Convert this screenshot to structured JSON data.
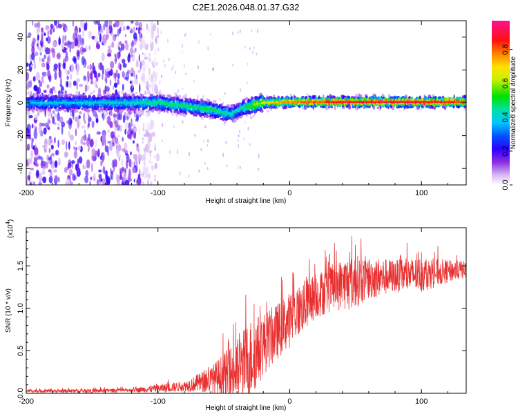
{
  "title": "C2E1.2026.048.01.37.G32",
  "colors": {
    "snr_line": "#e83030",
    "spectrogram_low": "#c9a6f0",
    "spectrogram_mid": "#4b10d0",
    "spectrogram_high": "#ff2a2a"
  },
  "colorbar": {
    "label": "Normalized spectral amplitude",
    "range": [
      0.0,
      0.97
    ],
    "ticks": [
      "0.0",
      "0.2",
      "0.4",
      "0.6",
      "0.8"
    ],
    "tick_values": [
      0.0,
      0.2,
      0.4,
      0.6,
      0.8
    ]
  },
  "chart_data": [
    {
      "type": "heatmap",
      "name": "spectrogram",
      "xlabel": "Height of straight line (km)",
      "ylabel": "Frequency (Hz)",
      "xlim": [
        -200,
        134
      ],
      "ylim": [
        -50,
        50
      ],
      "xticks": [
        -200,
        -100,
        0,
        100
      ],
      "xtick_labels": [
        "-200",
        "-100",
        "0",
        "100"
      ],
      "yticks": [
        -40,
        -20,
        0,
        20,
        40
      ],
      "ytick_labels": [
        "-40",
        "-20",
        "0",
        "20",
        "40"
      ],
      "ridge_center_hz": [
        [
          -200,
          0
        ],
        [
          -150,
          0
        ],
        [
          -120,
          0
        ],
        [
          -100,
          0
        ],
        [
          -80,
          -2
        ],
        [
          -60,
          -4
        ],
        [
          -45,
          -7
        ],
        [
          -35,
          -3
        ],
        [
          -20,
          0
        ],
        [
          0,
          0.5
        ],
        [
          50,
          0.5
        ],
        [
          100,
          0.5
        ],
        [
          134,
          0.5
        ]
      ],
      "ridge_peak_amplitude": [
        [
          -200,
          0.4
        ],
        [
          -120,
          0.45
        ],
        [
          -100,
          0.5
        ],
        [
          -60,
          0.55
        ],
        [
          -40,
          0.45
        ],
        [
          -20,
          0.7
        ],
        [
          0,
          0.85
        ],
        [
          50,
          0.95
        ],
        [
          100,
          0.95
        ],
        [
          134,
          0.9
        ]
      ],
      "noise_floor_extent_km": [
        -200,
        -112
      ]
    },
    {
      "type": "line",
      "name": "snr",
      "xlabel": "Height of straight line (km)",
      "ylabel": "SNR (10 * v/v)",
      "y_multiplier": "(x10",
      "y_multiplier_exp": "4",
      "y_multiplier_close": ")",
      "xlim": [
        -200,
        134
      ],
      "ylim": [
        0,
        1.95
      ],
      "xticks": [
        -200,
        -100,
        0,
        100
      ],
      "xtick_labels": [
        "-200",
        "-100",
        "0",
        "100"
      ],
      "yticks": [
        0.0,
        0.5,
        1.0,
        1.5
      ],
      "ytick_labels": [
        "0.0",
        "0.5",
        "1.0",
        "1.5"
      ],
      "series": [
        {
          "name": "SNR",
          "envelope_mean": [
            [
              -200,
              0.03
            ],
            [
              -150,
              0.03
            ],
            [
              -120,
              0.04
            ],
            [
              -100,
              0.06
            ],
            [
              -80,
              0.09
            ],
            [
              -60,
              0.17
            ],
            [
              -40,
              0.3
            ],
            [
              -30,
              0.45
            ],
            [
              -20,
              0.62
            ],
            [
              -10,
              0.75
            ],
            [
              0,
              0.9
            ],
            [
              10,
              1.05
            ],
            [
              20,
              1.18
            ],
            [
              30,
              1.25
            ],
            [
              40,
              1.32
            ],
            [
              50,
              1.35
            ],
            [
              60,
              1.38
            ],
            [
              80,
              1.4
            ],
            [
              100,
              1.42
            ],
            [
              120,
              1.45
            ],
            [
              134,
              1.47
            ]
          ],
          "envelope_max": [
            [
              -200,
              0.06
            ],
            [
              -120,
              0.08
            ],
            [
              -100,
              0.15
            ],
            [
              -80,
              0.2
            ],
            [
              -60,
              0.45
            ],
            [
              -40,
              1.0
            ],
            [
              -30,
              1.32
            ],
            [
              -20,
              1.3
            ],
            [
              -10,
              1.35
            ],
            [
              0,
              1.5
            ],
            [
              10,
              1.6
            ],
            [
              30,
              1.75
            ],
            [
              46,
              1.95
            ],
            [
              60,
              1.85
            ],
            [
              80,
              1.75
            ],
            [
              100,
              1.8
            ],
            [
              120,
              1.7
            ],
            [
              134,
              1.65
            ]
          ]
        }
      ]
    }
  ]
}
